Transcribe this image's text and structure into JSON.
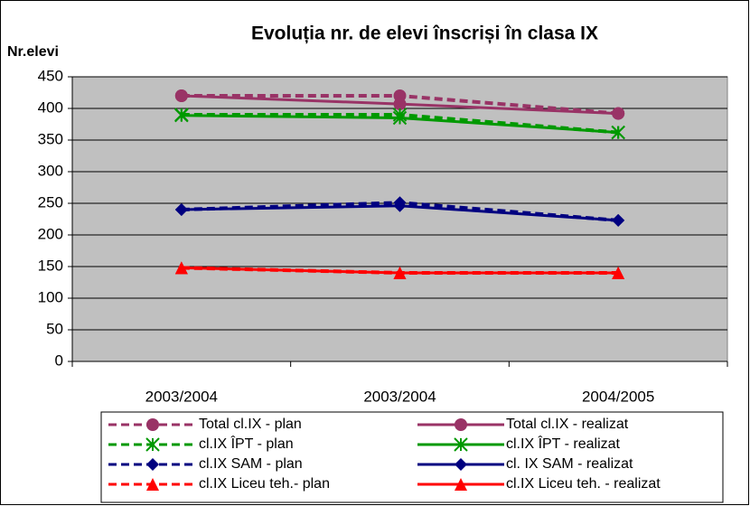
{
  "chart_data": {
    "type": "line",
    "title": "Evoluția nr. de elevi înscriși în clasa IX",
    "y_label": "Nr.elevi",
    "categories": [
      "2003/2004",
      "2003/2004",
      "2004/2005"
    ],
    "ylim": [
      0,
      450
    ],
    "yticks": [
      0,
      50,
      100,
      150,
      200,
      250,
      300,
      350,
      400,
      450
    ],
    "grid": true,
    "legend": "bottom",
    "series": [
      {
        "name": "Total cl.IX - plan",
        "color": "#993366",
        "marker": "circle",
        "dashed": true,
        "values": [
          420,
          420,
          392
        ]
      },
      {
        "name": "Total cl.IX - realizat",
        "color": "#993366",
        "marker": "circle",
        "dashed": false,
        "values": [
          420,
          407,
          392
        ]
      },
      {
        "name": "cl.IX ÎPT - plan",
        "color": "#009900",
        "marker": "asterisk",
        "dashed": true,
        "values": [
          390,
          390,
          362
        ]
      },
      {
        "name": "cl.IX ÎPT - realizat",
        "color": "#009900",
        "marker": "asterisk",
        "dashed": false,
        "values": [
          389,
          385,
          362
        ]
      },
      {
        "name": "cl.IX SAM - plan",
        "color": "#000080",
        "marker": "diamond",
        "dashed": true,
        "values": [
          240,
          251,
          223
        ]
      },
      {
        "name": "cl. IX SAM - realizat",
        "color": "#000080",
        "marker": "diamond",
        "dashed": false,
        "values": [
          240,
          246,
          223
        ]
      },
      {
        "name": "cl.IX Liceu teh.- plan",
        "color": "#ff0000",
        "marker": "triangle",
        "dashed": true,
        "values": [
          148,
          140,
          140
        ]
      },
      {
        "name": "cl.IX Liceu teh. - realizat",
        "color": "#ff0000",
        "marker": "triangle",
        "dashed": false,
        "values": [
          148,
          140,
          140
        ]
      }
    ]
  }
}
